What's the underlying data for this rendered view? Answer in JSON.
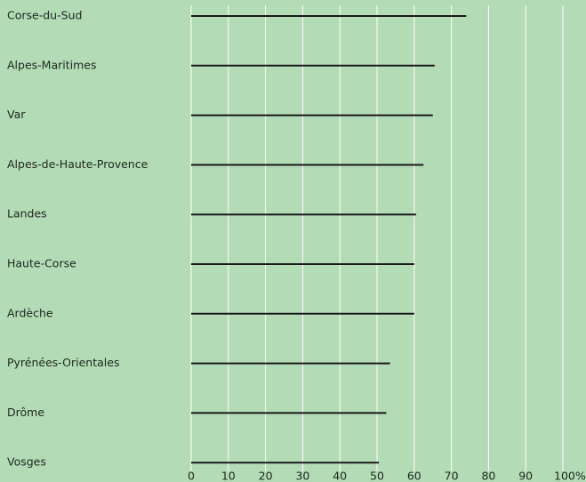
{
  "chart_data": {
    "type": "bar",
    "orientation": "horizontal",
    "categories": [
      "Corse-du-Sud",
      "Alpes-Maritimes",
      "Var",
      "Alpes-de-Haute-Provence",
      "Landes",
      "Haute-Corse",
      "Ardèche",
      "Pyrénées-Orientales",
      "Drôme",
      "Vosges"
    ],
    "values": [
      74,
      65.5,
      65,
      62.5,
      60.5,
      60,
      60,
      53.5,
      52.5,
      50.5
    ],
    "color": "#1a1a1a",
    "xlim": [
      0,
      100
    ],
    "xticks": [
      0,
      10,
      20,
      30,
      40,
      50,
      60,
      70,
      80,
      90,
      {
        "value": 100,
        "label": "100%"
      }
    ],
    "grid": true
  }
}
